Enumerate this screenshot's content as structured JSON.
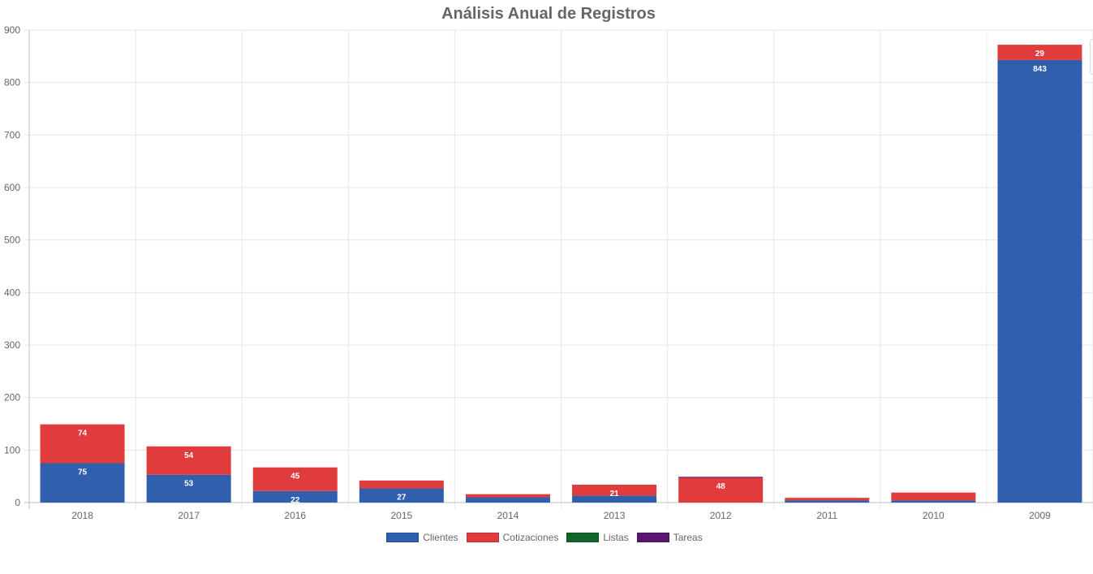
{
  "chart_data": {
    "type": "bar",
    "stacked": true,
    "title": "Análisis Anual de Registros",
    "xlabel": "",
    "ylabel": "",
    "categories": [
      "2018",
      "2017",
      "2016",
      "2015",
      "2014",
      "2013",
      "2012",
      "2011",
      "2010",
      "2009"
    ],
    "ylim": [
      0,
      900
    ],
    "yticks": [
      0,
      100,
      200,
      300,
      400,
      500,
      600,
      700,
      800,
      900
    ],
    "grid": true,
    "legend_position": "bottom",
    "series": [
      {
        "name": "Clientes",
        "color": "#2f5fad",
        "values": [
          75,
          53,
          22,
          27,
          10,
          13,
          0,
          4,
          4,
          843
        ],
        "labels": [
          "75",
          "53",
          "22",
          "27",
          "",
          "",
          "",
          "",
          "",
          "843"
        ]
      },
      {
        "name": "Cotizaciones",
        "color": "#e03b3d",
        "values": [
          74,
          54,
          45,
          15,
          6,
          21,
          48,
          5,
          15,
          29
        ],
        "labels": [
          "74",
          "54",
          "45",
          "",
          "",
          "21",
          "48",
          "",
          "",
          "29"
        ]
      },
      {
        "name": "Listas",
        "color": "#10652a",
        "values": [
          0,
          0,
          0,
          0,
          0,
          0,
          0,
          0,
          0,
          0
        ],
        "labels": [
          "",
          "",
          "",
          "",
          "",
          "",
          "",
          "",
          "",
          ""
        ]
      },
      {
        "name": "Tareas",
        "color": "#5c1672",
        "values": [
          0,
          0,
          0,
          0,
          0,
          0,
          1,
          0,
          0,
          0
        ],
        "labels": [
          "",
          "",
          "",
          "",
          "",
          "",
          "",
          "",
          "",
          ""
        ]
      }
    ]
  }
}
